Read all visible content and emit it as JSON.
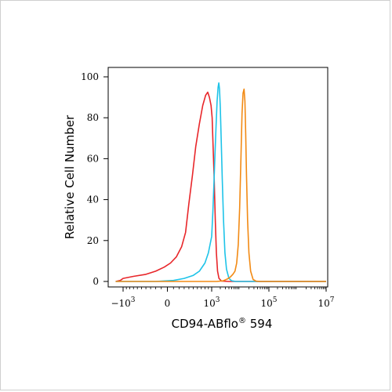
{
  "chart_data": {
    "type": "line",
    "title": "",
    "xlabel": "CD94-ABflo",
    "xlabel_superscript": "®",
    "xlabel_suffix": " 594",
    "ylabel": "Relative Cell Number",
    "x_scale": "biexponential",
    "ylim": [
      0,
      100
    ],
    "y_ticks": [
      "0",
      "20",
      "40",
      "60",
      "80",
      "100"
    ],
    "x_ticks": [
      {
        "base": "−10",
        "exp": "3",
        "value": -1000
      },
      {
        "base": "0",
        "exp": "",
        "value": 0
      },
      {
        "base": "10",
        "exp": "3",
        "value": 1000
      },
      {
        "base": "10",
        "exp": "5",
        "value": 100000
      },
      {
        "base": "10",
        "exp": "7",
        "value": 10000000
      }
    ],
    "series": [
      {
        "color": "#e8262a",
        "points": [
          [
            -3000,
            0
          ],
          [
            -1500,
            0.5
          ],
          [
            -1000,
            1.5
          ],
          [
            -700,
            2.5
          ],
          [
            -400,
            3.5
          ],
          [
            -200,
            5
          ],
          [
            -50,
            7
          ],
          [
            50,
            9
          ],
          [
            150,
            12
          ],
          [
            250,
            17
          ],
          [
            330,
            24
          ],
          [
            400,
            38
          ],
          [
            480,
            52
          ],
          [
            560,
            66
          ],
          [
            650,
            77
          ],
          [
            740,
            86
          ],
          [
            820,
            91
          ],
          [
            880,
            92.5
          ],
          [
            930,
            90
          ],
          [
            980,
            86
          ],
          [
            1040,
            80
          ],
          [
            1120,
            66
          ],
          [
            1220,
            50
          ],
          [
            1340,
            30
          ],
          [
            1460,
            14
          ],
          [
            1600,
            5
          ],
          [
            1800,
            1.5
          ],
          [
            2200,
            0.2
          ],
          [
            4000,
            0
          ],
          [
            10000000,
            0
          ]
        ]
      },
      {
        "color": "#1ec3e8",
        "points": [
          [
            -3000,
            0
          ],
          [
            -200,
            0
          ],
          [
            100,
            0.5
          ],
          [
            300,
            1.5
          ],
          [
            500,
            3
          ],
          [
            650,
            5
          ],
          [
            800,
            9
          ],
          [
            900,
            14
          ],
          [
            1000,
            22
          ],
          [
            1100,
            34
          ],
          [
            1200,
            48
          ],
          [
            1300,
            62
          ],
          [
            1420,
            76
          ],
          [
            1550,
            88
          ],
          [
            1680,
            95
          ],
          [
            1780,
            97
          ],
          [
            1880,
            94
          ],
          [
            2000,
            85
          ],
          [
            2150,
            70
          ],
          [
            2350,
            50
          ],
          [
            2600,
            30
          ],
          [
            2900,
            14
          ],
          [
            3300,
            6
          ],
          [
            4000,
            1.5
          ],
          [
            5000,
            0.3
          ],
          [
            7000,
            0
          ],
          [
            10000000,
            0
          ]
        ]
      },
      {
        "color": "#f28a14",
        "points": [
          [
            -3000,
            0
          ],
          [
            1500,
            0
          ],
          [
            2500,
            0.3
          ],
          [
            3500,
            1.2
          ],
          [
            4500,
            2.2
          ],
          [
            5500,
            3.5
          ],
          [
            6500,
            5
          ],
          [
            7500,
            9
          ],
          [
            8500,
            18
          ],
          [
            9500,
            36
          ],
          [
            10500,
            60
          ],
          [
            11500,
            82
          ],
          [
            12500,
            92
          ],
          [
            13500,
            94
          ],
          [
            14500,
            88
          ],
          [
            15500,
            72
          ],
          [
            16500,
            52
          ],
          [
            18000,
            30
          ],
          [
            20000,
            14
          ],
          [
            23000,
            5
          ],
          [
            28000,
            1
          ],
          [
            35000,
            0.2
          ],
          [
            50000,
            0
          ],
          [
            10000000,
            0
          ]
        ]
      }
    ]
  }
}
